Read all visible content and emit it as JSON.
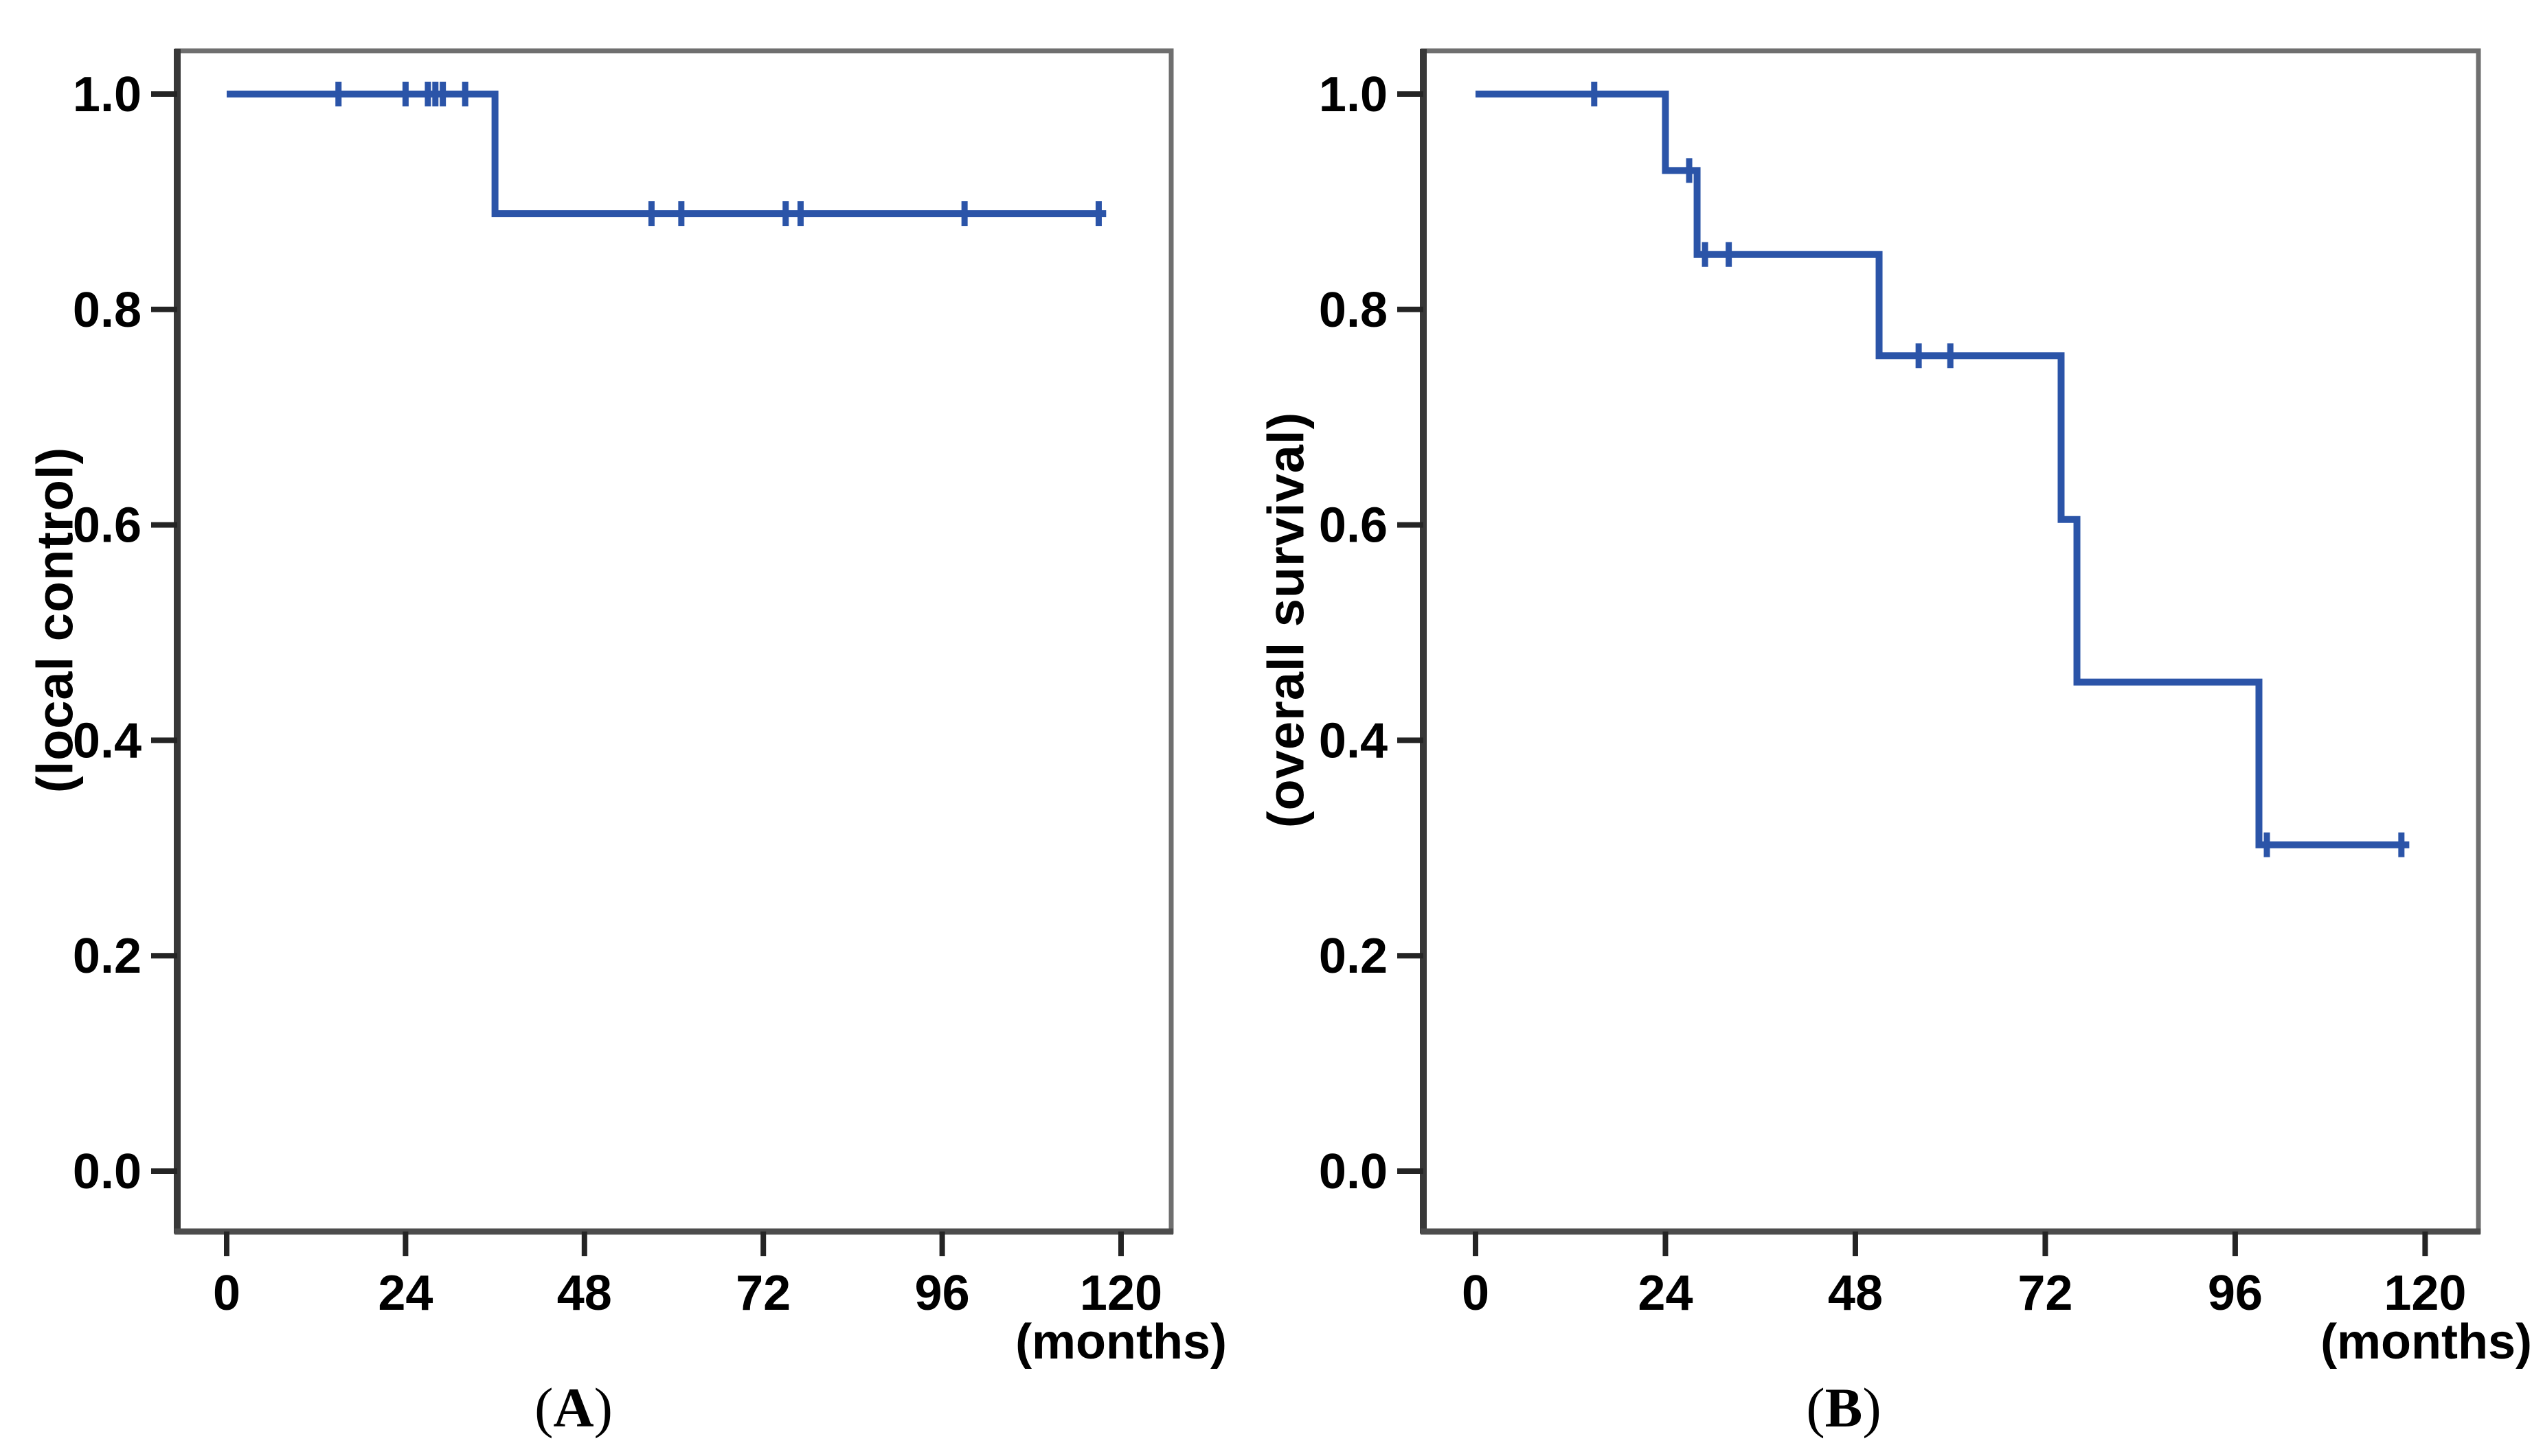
{
  "figure": {
    "background": "#ffffff",
    "curve_color": "#2b54a8",
    "frame_color": "#6f6f6f",
    "left_axis_color": "#383838",
    "bottom_axis_color": "#4c4c4c",
    "tick_color": "#242424",
    "text_color": "#000000"
  },
  "chart_data": [
    {
      "type": "line",
      "subtype": "kaplan-meier-step",
      "panel": "A",
      "caption_open": "(",
      "caption_letter": "A",
      "caption_close": ")",
      "title": "",
      "xlabel": "(months)",
      "ylabel": "(local control)",
      "x_ticks": [
        0,
        24,
        48,
        72,
        96,
        120
      ],
      "x_tick_labels": [
        "0",
        "24",
        "48",
        "72",
        "96",
        "120"
      ],
      "y_ticks": [
        1.0,
        0.8,
        0.6,
        0.4,
        0.2,
        0.0
      ],
      "y_tick_labels": [
        "1.0",
        "0.8",
        "0.6",
        "0.4",
        "0.2",
        "0.0"
      ],
      "xlim": [
        0,
        127
      ],
      "ylim": [
        -0.06,
        1.04
      ],
      "grid": false,
      "legend": null,
      "series": [
        {
          "name": "local control",
          "steps": [
            {
              "t": 0,
              "s": 1.0
            },
            {
              "t": 36,
              "s": 0.889
            }
          ],
          "end_t": 118,
          "censors": [
            {
              "t": 15,
              "s": 1.0
            },
            {
              "t": 24,
              "s": 1.0
            },
            {
              "t": 27,
              "s": 1.0
            },
            {
              "t": 28,
              "s": 1.0
            },
            {
              "t": 29,
              "s": 1.0
            },
            {
              "t": 32,
              "s": 1.0
            },
            {
              "t": 57,
              "s": 0.889
            },
            {
              "t": 61,
              "s": 0.889
            },
            {
              "t": 75,
              "s": 0.889
            },
            {
              "t": 77,
              "s": 0.889
            },
            {
              "t": 99,
              "s": 0.889
            },
            {
              "t": 117,
              "s": 0.889
            }
          ]
        }
      ]
    },
    {
      "type": "line",
      "subtype": "kaplan-meier-step",
      "panel": "B",
      "caption_open": "(",
      "caption_letter": "B",
      "caption_close": ")",
      "title": "",
      "xlabel": "(months)",
      "ylabel": "(overall survival)",
      "x_ticks": [
        0,
        24,
        48,
        72,
        96,
        120
      ],
      "x_tick_labels": [
        "0",
        "24",
        "48",
        "72",
        "96",
        "120"
      ],
      "y_ticks": [
        1.0,
        0.8,
        0.6,
        0.4,
        0.2,
        0.0
      ],
      "y_tick_labels": [
        "1.0",
        "0.8",
        "0.6",
        "0.4",
        "0.2",
        "0.0"
      ],
      "xlim": [
        0,
        127
      ],
      "ylim": [
        -0.06,
        1.04
      ],
      "grid": false,
      "legend": null,
      "series": [
        {
          "name": "overall survival",
          "steps": [
            {
              "t": 0,
              "s": 1.0
            },
            {
              "t": 24,
              "s": 0.929
            },
            {
              "t": 28,
              "s": 0.851
            },
            {
              "t": 51,
              "s": 0.757
            },
            {
              "t": 74,
              "s": 0.605
            },
            {
              "t": 76,
              "s": 0.454
            },
            {
              "t": 99,
              "s": 0.303
            }
          ],
          "end_t": 118,
          "censors": [
            {
              "t": 15,
              "s": 1.0
            },
            {
              "t": 27,
              "s": 0.929
            },
            {
              "t": 29,
              "s": 0.851
            },
            {
              "t": 32,
              "s": 0.851
            },
            {
              "t": 56,
              "s": 0.757
            },
            {
              "t": 60,
              "s": 0.757
            },
            {
              "t": 100,
              "s": 0.303
            },
            {
              "t": 117,
              "s": 0.303
            }
          ]
        }
      ]
    }
  ]
}
